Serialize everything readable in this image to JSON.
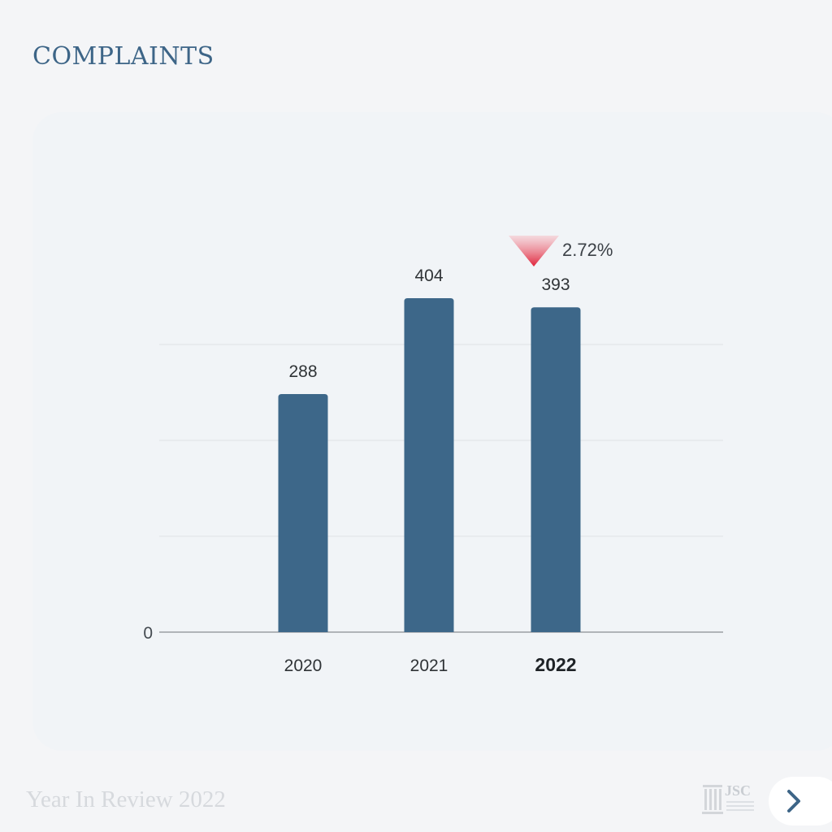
{
  "page": {
    "title": "COMPLAINTS",
    "footer_text": "Year In Review 2022",
    "logo_text": "JSC"
  },
  "colors": {
    "title": "#3d6587",
    "bar": "#3d6789",
    "decrease_marker": "#e0233a",
    "grid": "#dfe2e6",
    "axis": "#8a8d92"
  },
  "icons": {
    "next": "chevron-right-icon",
    "logo": "pillar-icon",
    "change": "triangle-down-icon"
  },
  "chart_data": {
    "type": "bar",
    "categories": [
      "2020",
      "2021",
      "2022"
    ],
    "values": [
      288,
      404,
      393
    ],
    "highlighted_category": "2022",
    "annotation": {
      "category": "2022",
      "direction": "down",
      "text": "2.72%"
    },
    "y_tick_labels": [
      "0"
    ],
    "ylim": [
      0,
      464
    ],
    "title": "",
    "xlabel": "",
    "ylabel": "",
    "grid": true,
    "gridlines_at": [
      116,
      232,
      348
    ]
  }
}
